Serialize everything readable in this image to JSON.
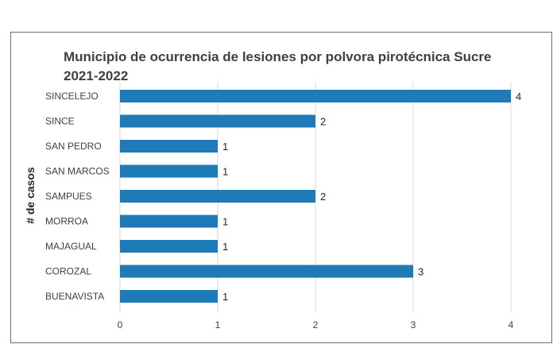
{
  "chart_data": {
    "type": "bar",
    "orientation": "horizontal",
    "title": "Municipio de ocurrencia de lesiones por polvora pirotécnica Sucre 2021-2022",
    "title_lines": [
      "Municipio de ocurrencia de lesiones por polvora pirotécnica Sucre",
      "2021-2022"
    ],
    "ylabel": "# de casos",
    "xlabel": "",
    "categories": [
      "SINCELEJO",
      "SINCE",
      "SAN PEDRO",
      "SAN MARCOS",
      "SAMPUES",
      "MORROA",
      "MAJAGUAL",
      "COROZAL",
      "BUENAVISTA"
    ],
    "values": [
      4,
      2,
      1,
      1,
      2,
      1,
      1,
      3,
      1
    ],
    "xlim": [
      0,
      4
    ],
    "xticks": [
      0,
      1,
      2,
      3,
      4
    ],
    "grid": true,
    "data_labels": true,
    "colors": {
      "bar": "#1f7bb8",
      "grid": "#d9d9d9",
      "text": "#404040"
    }
  }
}
